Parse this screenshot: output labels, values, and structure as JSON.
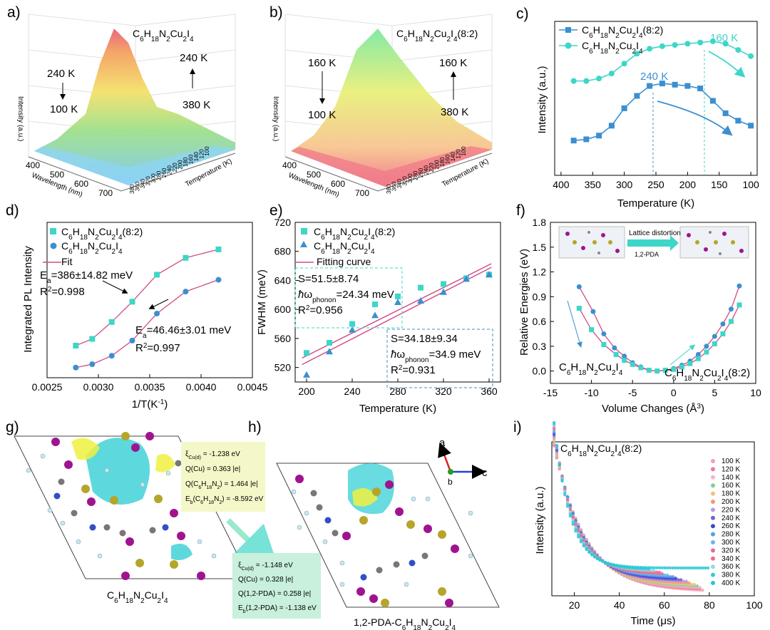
{
  "panel_labels": [
    "a)",
    "b)",
    "c)",
    "d)",
    "e)",
    "f)",
    "g)",
    "h)",
    "i)"
  ],
  "compounds": {
    "pure": "C6H18N2Cu2I4",
    "mixed": "C6H18N2Cu2I4(8:2)",
    "pda": "1,2-PDA-C6H18N2Cu2I4"
  },
  "panel_a": {
    "zlabel": "Intensity (a.u.)",
    "xlabel": "Wavelength (nm)",
    "ylabel": "Temperature (K)",
    "x_ticks": [
      "400",
      "500",
      "600",
      "700"
    ],
    "temp_ticks": [
      "380",
      "360",
      "340",
      "320",
      "300",
      "280",
      "260",
      "240",
      "220",
      "200",
      "180",
      "160",
      "140",
      "120",
      "100"
    ],
    "arrow_labels": [
      "240 K",
      "100 K",
      "240 K",
      "380 K"
    ]
  },
  "panel_b": {
    "zlabel": "Intensity (a.u.)",
    "xlabel": "Wavelength (nm)",
    "ylabel": "Temperature (K)",
    "x_ticks": [
      "400",
      "500",
      "600",
      "700"
    ],
    "temp_ticks": [
      "380",
      "360",
      "340",
      "320",
      "300",
      "280",
      "260",
      "240",
      "220",
      "200",
      "180",
      "160",
      "140",
      "120",
      "100"
    ],
    "arrow_labels": [
      "160 K",
      "100 K",
      "160 K",
      "380 K"
    ]
  },
  "chart_data": [
    {
      "id": "c",
      "type": "line",
      "xlabel": "Temperature (K)",
      "ylabel": "Intensity (a.u.)",
      "xlim": [
        400,
        100
      ],
      "x_ticks": [
        400,
        350,
        300,
        250,
        200,
        150,
        100
      ],
      "ylim": [
        0,
        1
      ],
      "x": [
        380,
        360,
        340,
        320,
        300,
        280,
        260,
        240,
        220,
        200,
        180,
        160,
        140,
        120,
        100
      ],
      "series": [
        {
          "name": "C6H18N2Cu2I4(8:2)",
          "color": "#3b8fd0",
          "marker": "square",
          "values": [
            0.34,
            0.345,
            0.36,
            0.4,
            0.47,
            0.52,
            0.56,
            0.57,
            0.565,
            0.56,
            0.55,
            0.5,
            0.45,
            0.42,
            0.4
          ]
        },
        {
          "name": "C6H18N2Cu2I4",
          "color": "#3dd6c8",
          "marker": "circle",
          "values": [
            0.58,
            0.58,
            0.59,
            0.61,
            0.65,
            0.69,
            0.71,
            0.72,
            0.725,
            0.73,
            0.735,
            0.74,
            0.73,
            0.705,
            0.68
          ]
        }
      ],
      "annotations": [
        "240 K",
        "160 K"
      ]
    },
    {
      "id": "d",
      "type": "scatter",
      "xlabel": "1/T(K-1)",
      "ylabel": "Integrated PL Intensity",
      "xlim": [
        0.0025,
        0.0045
      ],
      "x_ticks": [
        "0.0025",
        "0.0030",
        "0.0035",
        "0.0040",
        "0.0045"
      ],
      "ylim": [
        0,
        1
      ],
      "series": [
        {
          "name": "C6H18N2Cu2I4(8:2)",
          "color": "#3dd6c8",
          "marker": "square",
          "x": [
            0.00278,
            0.00294,
            0.00313,
            0.00333,
            0.00357,
            0.00385,
            0.00417
          ],
          "values": [
            0.19,
            0.23,
            0.33,
            0.45,
            0.61,
            0.71,
            0.76
          ]
        },
        {
          "name": "C6H18N2Cu2I4",
          "color": "#3b8fd0",
          "marker": "circle",
          "x": [
            0.00278,
            0.00294,
            0.00313,
            0.00333,
            0.00357,
            0.00385,
            0.00417
          ],
          "values": [
            0.06,
            0.08,
            0.13,
            0.22,
            0.38,
            0.51,
            0.58
          ]
        }
      ],
      "fit_label": "Fit",
      "fit_color": "#d14b86",
      "annotations": [
        "Ea=386±14.82 meV",
        "R2=0.998",
        "Ea=46.46±3.01 meV",
        "R2=0.997"
      ]
    },
    {
      "id": "e",
      "type": "scatter",
      "xlabel": "Temperature (K)",
      "ylabel": "FWHM (meV)",
      "xlim": [
        190,
        370
      ],
      "x_ticks": [
        200,
        240,
        280,
        320,
        360
      ],
      "ylim": [
        500,
        720
      ],
      "y_ticks": [
        520,
        560,
        600,
        640,
        680,
        720
      ],
      "series": [
        {
          "name": "C6H18N2Cu2I4(8:2)",
          "color": "#3dd6c8",
          "marker": "square",
          "x": [
            200,
            220,
            240,
            260,
            280,
            300,
            320,
            340,
            360
          ],
          "values": [
            540,
            554,
            580,
            607,
            618,
            630,
            635,
            643,
            648
          ]
        },
        {
          "name": "C6H18N2Cu2I4",
          "color": "#3b8fd0",
          "marker": "triangle",
          "x": [
            200,
            220,
            240,
            260,
            280,
            300,
            320,
            340,
            360
          ],
          "values": [
            510,
            542,
            572,
            592,
            610,
            612,
            624,
            642,
            648
          ]
        }
      ],
      "fit_label": "Fitting curve",
      "fit_color": "#d14b86",
      "fit_lines": [
        [
          196,
          533,
          362,
          663
        ],
        [
          196,
          524,
          362,
          658
        ]
      ],
      "annotations": [
        "S=51.5±8.74",
        "ħωphonon=24.34 meV",
        "R2=0.956",
        "S=34.18±9.34",
        "ħωphonon=34.9 meV",
        "R2=0.931"
      ]
    },
    {
      "id": "f",
      "type": "line",
      "xlabel": "Volume Changes (Å3)",
      "ylabel": "Relative Energies (eV)",
      "xlim": [
        -15,
        10
      ],
      "x_ticks": [
        -15,
        -10,
        -5,
        0,
        5,
        10
      ],
      "ylim": [
        -0.15,
        1.8
      ],
      "y_ticks": [
        "0.0",
        "0.3",
        "0.6",
        "0.9",
        "1.2",
        "1.5",
        "1.8"
      ],
      "series": [
        {
          "name": "C6H18N2Cu2I4",
          "color": "#3b8fd0",
          "marker": "circle",
          "x": [
            -11.5,
            -9.8,
            -8.5,
            -7.2,
            -6,
            -5,
            -4,
            -3,
            -2,
            -1,
            0,
            1,
            2,
            3,
            4,
            5,
            6,
            7,
            8
          ],
          "values": [
            1.02,
            0.72,
            0.45,
            0.28,
            0.18,
            0.1,
            0.05,
            0.01,
            0.0,
            0.01,
            0.03,
            0.07,
            0.12,
            0.2,
            0.3,
            0.42,
            0.57,
            0.75,
            1.03
          ]
        },
        {
          "name": "C6H18N2Cu2I4(8:2)",
          "color": "#3dd6c8",
          "marker": "square",
          "x": [
            -11.5,
            -10,
            -8.5,
            -7,
            -6,
            -5,
            -4,
            -3,
            -2,
            -1,
            0,
            1,
            2,
            3,
            4,
            5,
            6,
            7,
            8
          ],
          "values": [
            0.76,
            0.5,
            0.32,
            0.2,
            0.13,
            0.08,
            0.04,
            0.01,
            0.0,
            0.01,
            0.02,
            0.05,
            0.09,
            0.15,
            0.23,
            0.33,
            0.45,
            0.6,
            0.8
          ]
        }
      ],
      "inset_labels": [
        "Lattice distortion",
        "1,2-PDA"
      ]
    },
    {
      "id": "i",
      "type": "scatter",
      "title": "C6H18N2Cu2I4(8:2)",
      "xlabel": "Time (μs)",
      "ylabel": "Intensity (a.u.)",
      "xlim": [
        10,
        100
      ],
      "x_ticks": [
        20,
        40,
        60,
        80,
        100
      ],
      "legend": [
        "100 K",
        "120 K",
        "140 K",
        "160 K",
        "180 K",
        "200 K",
        "220 K",
        "240 K",
        "260 K",
        "280 K",
        "300 K",
        "320 K",
        "340 K",
        "360 K",
        "380 K",
        "400 K"
      ],
      "colors": [
        "#f4a0b8",
        "#f07a9a",
        "#f4b6c2",
        "#7fcf9f",
        "#f1c27d",
        "#f49a6a",
        "#b59ae6",
        "#7b5cd6",
        "#3a46d6",
        "#4aa3e8",
        "#6ab7e6",
        "#e86a9a",
        "#f06d8f",
        "#9bd6e8",
        "#3ec8d0",
        "#22c8d6"
      ],
      "decay_tau": [
        14,
        13.5,
        13,
        12.5,
        12,
        11.6,
        11.2,
        10.8,
        10.4,
        10,
        9.5,
        9,
        8.5,
        8,
        7.5,
        7
      ],
      "end_time": [
        78,
        77,
        76,
        75,
        74,
        72,
        70,
        68,
        66,
        64,
        62,
        60,
        58,
        56,
        54,
        80
      ]
    }
  ],
  "panel_g": {
    "xi": "ξCu(d) = -1.238 eV",
    "q_cu": "Q(Cu) = 0.363 |e|",
    "q_org": "Q(C6H18N2) = 1.464 |e|",
    "eb": "Eb(C6H18N2) = -8.592 eV",
    "caption": "C6H18N2Cu2I4"
  },
  "panel_h": {
    "xi": "ξCu(d) = -1.148 eV",
    "q_cu": "Q(Cu) = 0.328 |e|",
    "q_org": "Q(1,2-PDA) = 0.258 |e|",
    "eb": "Eb(1,2-PDA) = -1.138 eV",
    "caption": "1,2-PDA-C6H18N2Cu2I4",
    "axes": [
      "a",
      "b",
      "c"
    ]
  },
  "colors": {
    "cyan": "#3dd6c8",
    "blue": "#3b8fd0",
    "pink": "#d14b86",
    "purple": "#a0138e",
    "gold": "#a08a2a"
  }
}
